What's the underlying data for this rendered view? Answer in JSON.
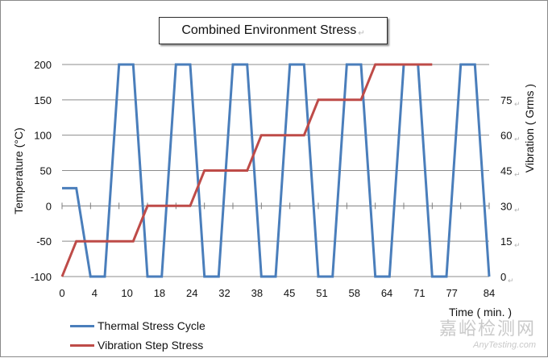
{
  "chart_data": {
    "type": "line",
    "title": "Combined Environment Stress",
    "xlabel": "Time ( min. )",
    "ylabel_left": "Temperature (°C)",
    "ylabel_right": "Vibration ( Grms )",
    "x_tick_labels": [
      "0",
      "4",
      "10",
      "18",
      "24",
      "32",
      "38",
      "45",
      "51",
      "58",
      "64",
      "71",
      "77",
      "84"
    ],
    "y_left_ticks": [
      200,
      150,
      100,
      50,
      0,
      -50,
      -100
    ],
    "y_left_range": [
      -100,
      200
    ],
    "y_right_ticks": [
      "75",
      "60",
      "45",
      "30",
      "15",
      "0"
    ],
    "y_right_range": [
      0,
      90
    ],
    "grid": "horizontal",
    "legend_position": "bottom-left",
    "series": [
      {
        "name": "Thermal Stress Cycle",
        "axis": "left",
        "color": "#4a7ebb",
        "points": [
          [
            0,
            25
          ],
          [
            3,
            25
          ],
          [
            6,
            -100
          ],
          [
            9,
            -100
          ],
          [
            12,
            200
          ],
          [
            15,
            200
          ],
          [
            18,
            -100
          ],
          [
            21,
            -100
          ],
          [
            24,
            200
          ],
          [
            27,
            200
          ],
          [
            30,
            -100
          ],
          [
            33,
            -100
          ],
          [
            36,
            200
          ],
          [
            39,
            200
          ],
          [
            42,
            -100
          ],
          [
            45,
            -100
          ],
          [
            48,
            200
          ],
          [
            51,
            200
          ],
          [
            54,
            -100
          ],
          [
            57,
            -100
          ],
          [
            60,
            200
          ],
          [
            63,
            200
          ],
          [
            66,
            -100
          ],
          [
            69,
            -100
          ],
          [
            72,
            200
          ],
          [
            75,
            200
          ],
          [
            78,
            -100
          ],
          [
            81,
            -100
          ],
          [
            84,
            200
          ],
          [
            87,
            200
          ],
          [
            90,
            -100
          ]
        ]
      },
      {
        "name": "Vibration Step Stress",
        "axis": "right",
        "color": "#be4b48",
        "points": [
          [
            0,
            0
          ],
          [
            3,
            15
          ],
          [
            15,
            15
          ],
          [
            18,
            30
          ],
          [
            27,
            30
          ],
          [
            30,
            45
          ],
          [
            39,
            45
          ],
          [
            42,
            60
          ],
          [
            51,
            60
          ],
          [
            54,
            75
          ],
          [
            63,
            75
          ],
          [
            66,
            90
          ],
          [
            78,
            90
          ]
        ]
      }
    ]
  },
  "title_mark": "↵",
  "right_tick_mark": "↵",
  "watermark": {
    "main": "嘉峪检测网",
    "sub": "AnyTesting.com"
  }
}
